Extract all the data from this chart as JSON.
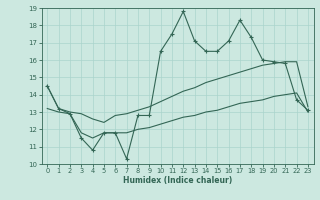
{
  "xlabel": "Humidex (Indice chaleur)",
  "x": [
    0,
    1,
    2,
    3,
    4,
    5,
    6,
    7,
    8,
    9,
    10,
    11,
    12,
    13,
    14,
    15,
    16,
    17,
    18,
    19,
    20,
    21,
    22,
    23
  ],
  "line_max": [
    14.5,
    13.2,
    12.9,
    11.5,
    10.8,
    11.8,
    11.8,
    10.3,
    12.8,
    12.8,
    16.5,
    17.5,
    18.8,
    17.1,
    16.5,
    16.5,
    17.1,
    18.3,
    17.3,
    16.0,
    15.9,
    15.8,
    13.7,
    13.1
  ],
  "line_upper": [
    14.5,
    13.2,
    13.0,
    12.9,
    12.6,
    12.4,
    12.8,
    12.9,
    13.1,
    13.3,
    13.6,
    13.9,
    14.2,
    14.4,
    14.7,
    14.9,
    15.1,
    15.3,
    15.5,
    15.7,
    15.8,
    15.9,
    15.9,
    13.3
  ],
  "line_lower": [
    13.2,
    13.0,
    12.9,
    11.8,
    11.5,
    11.8,
    11.8,
    11.8,
    12.0,
    12.1,
    12.3,
    12.5,
    12.7,
    12.8,
    13.0,
    13.1,
    13.3,
    13.5,
    13.6,
    13.7,
    13.9,
    14.0,
    14.1,
    13.0
  ],
  "bg_color": "#cce8e0",
  "grid_color": "#aad4cc",
  "line_color": "#336655",
  "ylim": [
    10,
    19
  ],
  "xlim": [
    -0.5,
    23.5
  ],
  "yticks": [
    10,
    11,
    12,
    13,
    14,
    15,
    16,
    17,
    18,
    19
  ],
  "xticks": [
    0,
    1,
    2,
    3,
    4,
    5,
    6,
    7,
    8,
    9,
    10,
    11,
    12,
    13,
    14,
    15,
    16,
    17,
    18,
    19,
    20,
    21,
    22,
    23
  ]
}
